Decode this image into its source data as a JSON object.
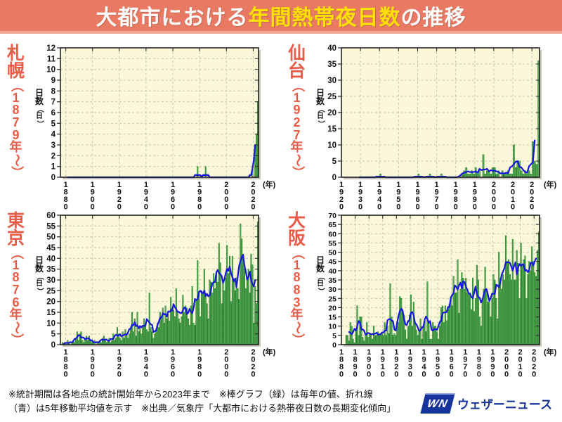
{
  "title": {
    "prefix": "大都市における",
    "highlight": "年間熱帯夜日数",
    "suffix": "の推移"
  },
  "y_axis_label_main": "日数",
  "y_axis_label_sub": "（日）",
  "axis_unit_label": "(年)",
  "footer": {
    "line1": "※統計期間は各地点の統計開始年から2023年まで　※棒グラフ（緑）は毎年の値、折れ線",
    "line2": "（青）は5年移動平均値を示す　※出典／気象庁「大都市における熱帯夜日数の長期変化傾向」",
    "logo_mark": "WN",
    "logo_text": "ウェザーニュース"
  },
  "colors": {
    "header_bg": "#E87A63",
    "title_highlight": "#FFE100",
    "city_label": "#E85C48",
    "plot_bg": "#FAF8D8",
    "plot_shadow": "#9B977D",
    "grid": "#C9C5A9",
    "frame": "#222222",
    "bar_fill": "#58A95A",
    "bar_stroke": "#1C7A1F",
    "line": "#1717D8",
    "logo_blue": "#16349C"
  },
  "series_labels": {
    "bars": "毎年の値",
    "line": "5年移動平均値"
  },
  "chart_data": [
    {
      "type": "bar+line",
      "city": "札幌",
      "since": "（1879年〜）",
      "title": "札幌の年間熱帯夜日数",
      "start_year": 1879,
      "end_year": 2023,
      "xmin": 1876,
      "xmax": 2024,
      "ylim": [
        0,
        12
      ],
      "ystep": 1,
      "xticks": [
        1880,
        1900,
        1920,
        1940,
        1960,
        1980,
        2000,
        2020
      ],
      "values": [
        0,
        0,
        0,
        0,
        0,
        0,
        0,
        0,
        0,
        0,
        0,
        0,
        0,
        0,
        0,
        0,
        0,
        0,
        0,
        0,
        0,
        0,
        0,
        0,
        0,
        0,
        0,
        0,
        0,
        0,
        0,
        0,
        0,
        0,
        0,
        0,
        0,
        0,
        0,
        0,
        0,
        0,
        0,
        0,
        0,
        0,
        0,
        0,
        0,
        0,
        0,
        0,
        0,
        0,
        0,
        0,
        0,
        0,
        0,
        0,
        0,
        0,
        0,
        0,
        0,
        0,
        0,
        0,
        0,
        0,
        0,
        0,
        0,
        0,
        0,
        0,
        0,
        0,
        0,
        0,
        0,
        0,
        0,
        0,
        0,
        0,
        0,
        0,
        0,
        0,
        0,
        0,
        0,
        0,
        0,
        0,
        0,
        0,
        0,
        1,
        0,
        0,
        0,
        0,
        0,
        1,
        0,
        0,
        0,
        0,
        0,
        0,
        0,
        0,
        0,
        0,
        0,
        0,
        0,
        0,
        0,
        0,
        0,
        0,
        0,
        0,
        0,
        0,
        0,
        0,
        0,
        0,
        0,
        0,
        0,
        0,
        0,
        0,
        0,
        0,
        1,
        0,
        3,
        4,
        7
      ]
    },
    {
      "type": "bar+line",
      "city": "仙台",
      "since": "（1927年〜）",
      "title": "仙台の年間熱帯夜日数",
      "start_year": 1927,
      "end_year": 2023,
      "xmin": 1920,
      "xmax": 2024,
      "ylim": [
        0,
        40
      ],
      "ystep": 5,
      "xticks": [
        1920,
        1930,
        1940,
        1950,
        1960,
        1970,
        1980,
        1990,
        2000,
        2010,
        2020
      ],
      "values": [
        0,
        0,
        0,
        0,
        0,
        0,
        0,
        0,
        0,
        0,
        0,
        0,
        0,
        1,
        0,
        0,
        0,
        0,
        0,
        0,
        0,
        0,
        0,
        0,
        0,
        0,
        0,
        0,
        0,
        0,
        0,
        0,
        0,
        1,
        0,
        0,
        0,
        0,
        0,
        1,
        0,
        0,
        0,
        0,
        0,
        1,
        0,
        0,
        0,
        0,
        0,
        0,
        0,
        0,
        0,
        0,
        1,
        2,
        3,
        1,
        1,
        2,
        1,
        3,
        1,
        2,
        0,
        7,
        1,
        2,
        2,
        1,
        3,
        3,
        1,
        2,
        0,
        2,
        1,
        1,
        2,
        1,
        1,
        10,
        3,
        5,
        5,
        2,
        1,
        2,
        1,
        2,
        1,
        11,
        5,
        4,
        36
      ]
    },
    {
      "type": "bar+line",
      "city": "東京",
      "since": "（1876年〜）",
      "title": "東京の年間熱帯夜日数",
      "start_year": 1876,
      "end_year": 2023,
      "xmin": 1876,
      "xmax": 2024,
      "ylim": [
        0,
        60
      ],
      "ystep": 5,
      "xticks": [
        1880,
        1900,
        1920,
        1940,
        1960,
        1980,
        2000,
        2020
      ],
      "values": [
        0,
        1,
        0,
        1,
        0,
        2,
        1,
        0,
        1,
        2,
        1,
        3,
        6,
        2,
        5,
        6,
        2,
        1,
        3,
        4,
        2,
        4,
        2,
        1,
        1,
        2,
        0,
        1,
        1,
        2,
        1,
        3,
        4,
        2,
        1,
        2,
        3,
        1,
        2,
        5,
        2,
        3,
        8,
        5,
        3,
        2,
        6,
        3,
        7,
        5,
        3,
        5,
        8,
        15,
        6,
        12,
        4,
        15,
        6,
        8,
        5,
        9,
        12,
        10,
        7,
        6,
        24,
        8,
        6,
        3,
        5,
        7,
        10,
        8,
        15,
        13,
        17,
        10,
        18,
        12,
        14,
        11,
        22,
        17,
        16,
        13,
        26,
        15,
        12,
        10,
        13,
        23,
        15,
        18,
        17,
        12,
        9,
        18,
        27,
        10,
        9,
        21,
        39,
        24,
        13,
        25,
        24,
        35,
        22,
        19,
        12,
        30,
        29,
        24,
        33,
        26,
        33,
        29,
        47,
        38,
        19,
        30,
        25,
        31,
        46,
        33,
        41,
        20,
        41,
        30,
        25,
        31,
        26,
        21,
        56,
        49,
        42,
        35,
        26,
        31,
        35,
        24,
        42,
        37,
        10,
        27,
        19,
        57
      ]
    },
    {
      "type": "bar+line",
      "city": "大阪",
      "since": "（1883年〜）",
      "title": "大阪の年間熱帯夜日数",
      "start_year": 1883,
      "end_year": 2023,
      "xmin": 1880,
      "xmax": 2024,
      "ylim": [
        0,
        70
      ],
      "ystep": 5,
      "xticks": [
        1880,
        1890,
        1900,
        1910,
        1920,
        1930,
        1940,
        1950,
        1960,
        1970,
        1980,
        1990,
        2000,
        2010,
        2020
      ],
      "values": [
        5,
        5,
        2,
        12,
        10,
        3,
        1,
        8,
        21,
        5,
        15,
        15,
        4,
        2,
        5,
        12,
        4,
        6,
        5,
        3,
        10,
        5,
        5,
        7,
        5,
        5,
        6,
        5,
        12,
        5,
        10,
        6,
        33,
        15,
        5,
        6,
        5,
        10,
        12,
        26,
        25,
        18,
        16,
        8,
        3,
        10,
        16,
        27,
        10,
        23,
        12,
        8,
        5,
        7,
        14,
        3,
        10,
        13,
        7,
        34,
        12,
        3,
        3,
        12,
        10,
        10,
        7,
        3,
        10,
        20,
        21,
        12,
        21,
        13,
        20,
        22,
        26,
        21,
        37,
        28,
        28,
        46,
        17,
        30,
        39,
        36,
        30,
        36,
        28,
        27,
        28,
        19,
        36,
        18,
        25,
        43,
        35,
        15,
        10,
        24,
        30,
        42,
        30,
        23,
        25,
        15,
        25,
        38,
        35,
        25,
        14,
        50,
        36,
        30,
        38,
        35,
        59,
        45,
        46,
        38,
        35,
        57,
        35,
        35,
        51,
        44,
        25,
        55,
        43,
        46,
        48,
        25,
        38,
        45,
        40,
        53,
        45,
        39,
        37,
        51,
        61
      ]
    }
  ]
}
